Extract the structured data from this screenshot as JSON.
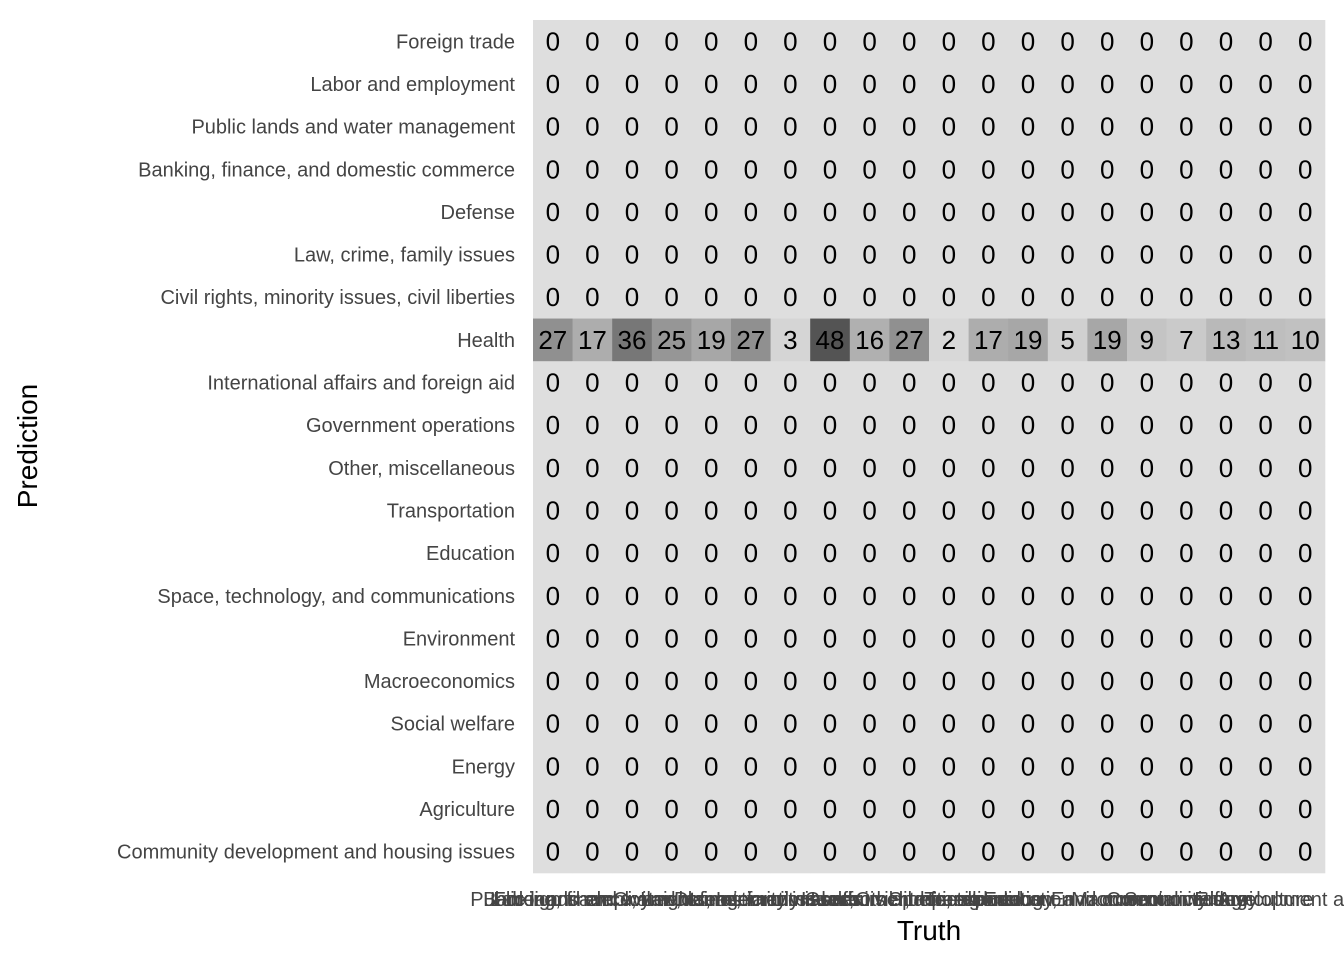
{
  "chart_data": {
    "type": "heatmap",
    "xlabel": "Truth",
    "ylabel": "Prediction",
    "y_categories": [
      "Foreign trade",
      "Labor and employment",
      "Public lands and water management",
      "Banking, finance, and domestic commerce",
      "Defense",
      "Law, crime, family issues",
      "Civil rights, minority issues, civil liberties",
      "Health",
      "International affairs and foreign aid",
      "Government operations",
      "Other, miscellaneous",
      "Transportation",
      "Education",
      "Space, technology, and communications",
      "Environment",
      "Macroeconomics",
      "Social welfare",
      "Energy",
      "Agriculture",
      "Community development and housing issues"
    ],
    "x_categories": [
      "Foreign trade",
      "Labor and employment",
      "Public lands and water management",
      "Banking, finance, and domestic commerce",
      "Defense",
      "Law, crime, family issues",
      "Civil rights, minority issues, civil liberties",
      "Health",
      "International affairs and foreign aid",
      "Government operations",
      "Other, miscellaneous",
      "Transportation",
      "Education",
      "Space, technology, and communications",
      "Environment",
      "Macroeconomics",
      "Social welfare",
      "Energy",
      "Agriculture",
      "Community development and housing issues"
    ],
    "health_row_values": [
      27,
      17,
      36,
      25,
      19,
      27,
      3,
      48,
      16,
      27,
      2,
      17,
      19,
      5,
      19,
      9,
      7,
      13,
      11,
      10
    ],
    "fill_scale": {
      "low": "#dedede",
      "high": "#545454",
      "min": 0,
      "max": 48
    },
    "panel_background": "#e0e0e0",
    "grid": true,
    "legend": "none"
  }
}
